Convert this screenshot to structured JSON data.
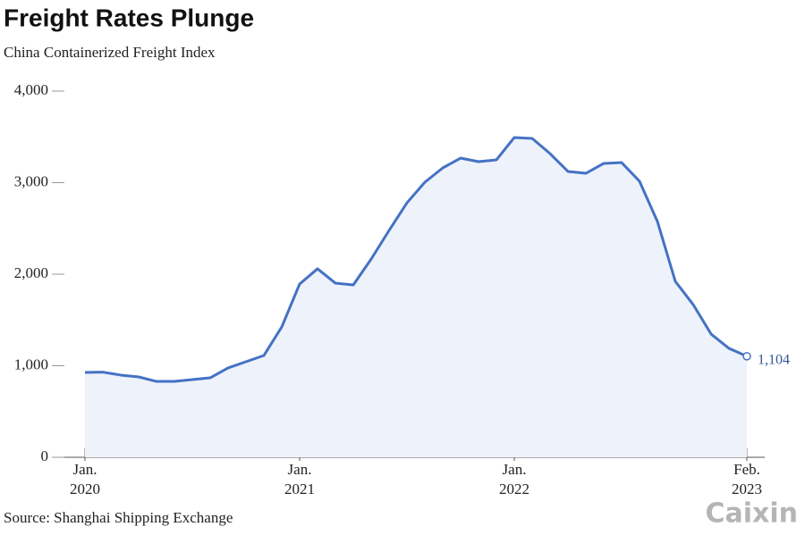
{
  "chart_data": {
    "type": "line",
    "title": "Freight Rates Plunge",
    "subtitle": "China Containerized Freight Index",
    "source": "Source: Shanghai Shipping Exchange",
    "logo": "Caixin",
    "x": [
      "2020-01",
      "2020-02",
      "2020-03",
      "2020-04",
      "2020-05",
      "2020-06",
      "2020-07",
      "2020-08",
      "2020-09",
      "2020-10",
      "2020-11",
      "2020-12",
      "2021-01",
      "2021-02",
      "2021-03",
      "2021-04",
      "2021-05",
      "2021-06",
      "2021-07",
      "2021-08",
      "2021-09",
      "2021-10",
      "2021-11",
      "2021-12",
      "2022-01",
      "2022-02",
      "2022-03",
      "2022-04",
      "2022-05",
      "2022-06",
      "2022-07",
      "2022-08",
      "2022-09",
      "2022-10",
      "2022-11",
      "2022-12",
      "2023-01",
      "2023-02"
    ],
    "series": [
      {
        "name": "China Containerized Freight Index",
        "color": "#4472c4",
        "area_color": "#eef2fa",
        "values": [
          927,
          930,
          898,
          878,
          829,
          829,
          849,
          868,
          976,
          1044,
          1112,
          1424,
          1893,
          2059,
          1902,
          1883,
          2166,
          2478,
          2780,
          3005,
          3161,
          3268,
          3229,
          3249,
          3493,
          3483,
          3317,
          3122,
          3102,
          3210,
          3219,
          3015,
          2576,
          1922,
          1668,
          1346,
          1190,
          1104
        ],
        "value_labels": [
          null,
          null,
          null,
          null,
          null,
          null,
          null,
          null,
          null,
          null,
          null,
          null,
          null,
          null,
          null,
          null,
          null,
          null,
          null,
          null,
          null,
          null,
          null,
          null,
          null,
          null,
          null,
          null,
          null,
          null,
          null,
          null,
          null,
          null,
          null,
          null,
          null,
          "1,104"
        ]
      }
    ],
    "ylim": [
      0,
      4000
    ],
    "yticks": [
      0,
      {
        "value": 1000,
        "label": "1,000"
      },
      {
        "value": 2000,
        "label": "2,000"
      },
      {
        "value": 3000,
        "label": "3,000"
      },
      {
        "value": 4000,
        "label": "4,000"
      }
    ],
    "xticks": [
      {
        "value": "2020-01",
        "label": [
          "Jan.",
          "2020"
        ]
      },
      {
        "value": "2021-01",
        "label": [
          "Jan.",
          "2021"
        ]
      },
      {
        "value": "2022-01",
        "label": [
          "Jan.",
          "2022"
        ]
      },
      {
        "value": "2023-02",
        "label": [
          "Feb.",
          "2023"
        ]
      }
    ],
    "grid": false
  }
}
